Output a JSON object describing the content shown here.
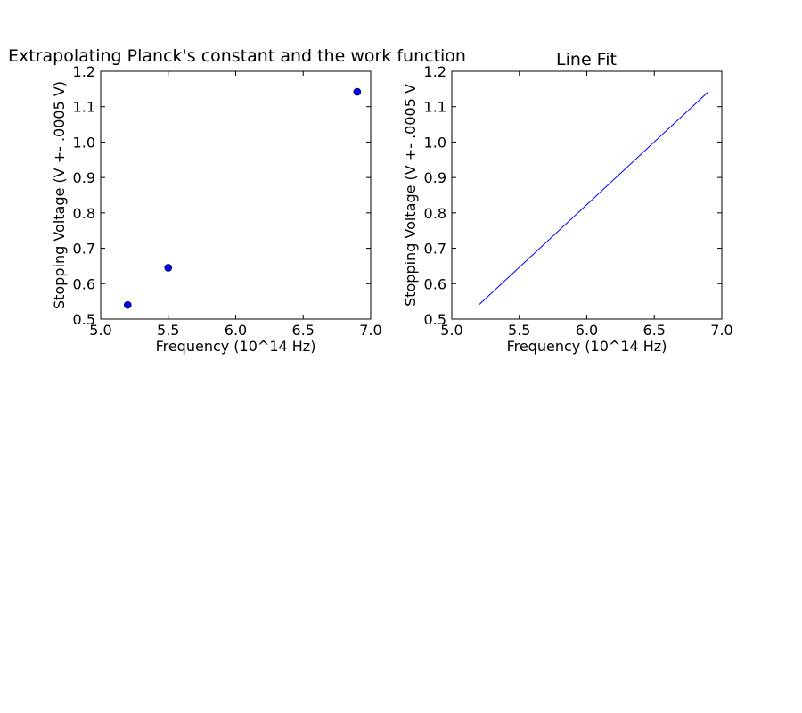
{
  "chart_data": [
    {
      "type": "scatter",
      "title": "Extrapolating Planck's constant and the work function",
      "xlabel": "Frequency (10^14 Hz)",
      "ylabel": "Stopping Voltage (V +- .0005 V)",
      "xlim": [
        5.0,
        7.0
      ],
      "ylim": [
        0.5,
        1.2
      ],
      "xticks": [
        "5.0",
        "5.5",
        "6.0",
        "6.5",
        "7.0"
      ],
      "yticks": [
        "0.5",
        "0.6",
        "0.7",
        "0.8",
        "0.9",
        "1.0",
        "1.1",
        "1.2"
      ],
      "grid": false,
      "color": "#0000ff",
      "series": [
        {
          "x": [
            5.2,
            5.5,
            6.9
          ],
          "y": [
            0.54,
            0.645,
            1.142
          ]
        }
      ]
    },
    {
      "type": "line",
      "title": "Line Fit",
      "xlabel": "Frequency (10^14 Hz)",
      "ylabel": "Stopping Voltage (V +- .0005 V",
      "xlim": [
        5.0,
        7.0
      ],
      "ylim": [
        0.5,
        1.2
      ],
      "xticks": [
        "5.0",
        "5.5",
        "6.0",
        "6.5",
        "7.0"
      ],
      "yticks": [
        "0.5",
        "0.6",
        "0.7",
        "0.8",
        "0.9",
        "1.0",
        "1.1",
        "1.2"
      ],
      "grid": false,
      "color": "#0000ff",
      "series": [
        {
          "x": [
            5.2,
            6.9
          ],
          "y": [
            0.54,
            1.142
          ]
        }
      ]
    }
  ]
}
